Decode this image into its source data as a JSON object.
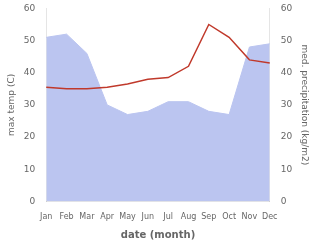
{
  "chart_data": {
    "type": "line",
    "categories": [
      "Jan",
      "Feb",
      "Mar",
      "Apr",
      "May",
      "Jun",
      "Jul",
      "Aug",
      "Sep",
      "Oct",
      "Nov",
      "Dec"
    ],
    "xlabel": "date (month)",
    "ylabel": "max temp (C)",
    "y2label": "med. precipitation (kg/m2)",
    "series": [
      {
        "type": "line",
        "color": "#c0392b",
        "values": [
          35.5,
          35,
          35,
          35.5,
          36.5,
          38,
          38.5,
          42,
          55,
          51,
          44,
          43
        ]
      },
      {
        "type": "area",
        "axis": "y2",
        "color": "#bbc5f0",
        "values": [
          51,
          52,
          46,
          30,
          27,
          28,
          31,
          31,
          28,
          27,
          48,
          49
        ]
      }
    ],
    "ylim": [
      0,
      60
    ],
    "yticks": [
      0,
      10,
      20,
      30,
      40,
      50,
      60
    ],
    "y2lim": [
      0,
      60
    ],
    "y2ticks": [
      0,
      10,
      20,
      30,
      40,
      50,
      60
    ],
    "grid": false
  }
}
